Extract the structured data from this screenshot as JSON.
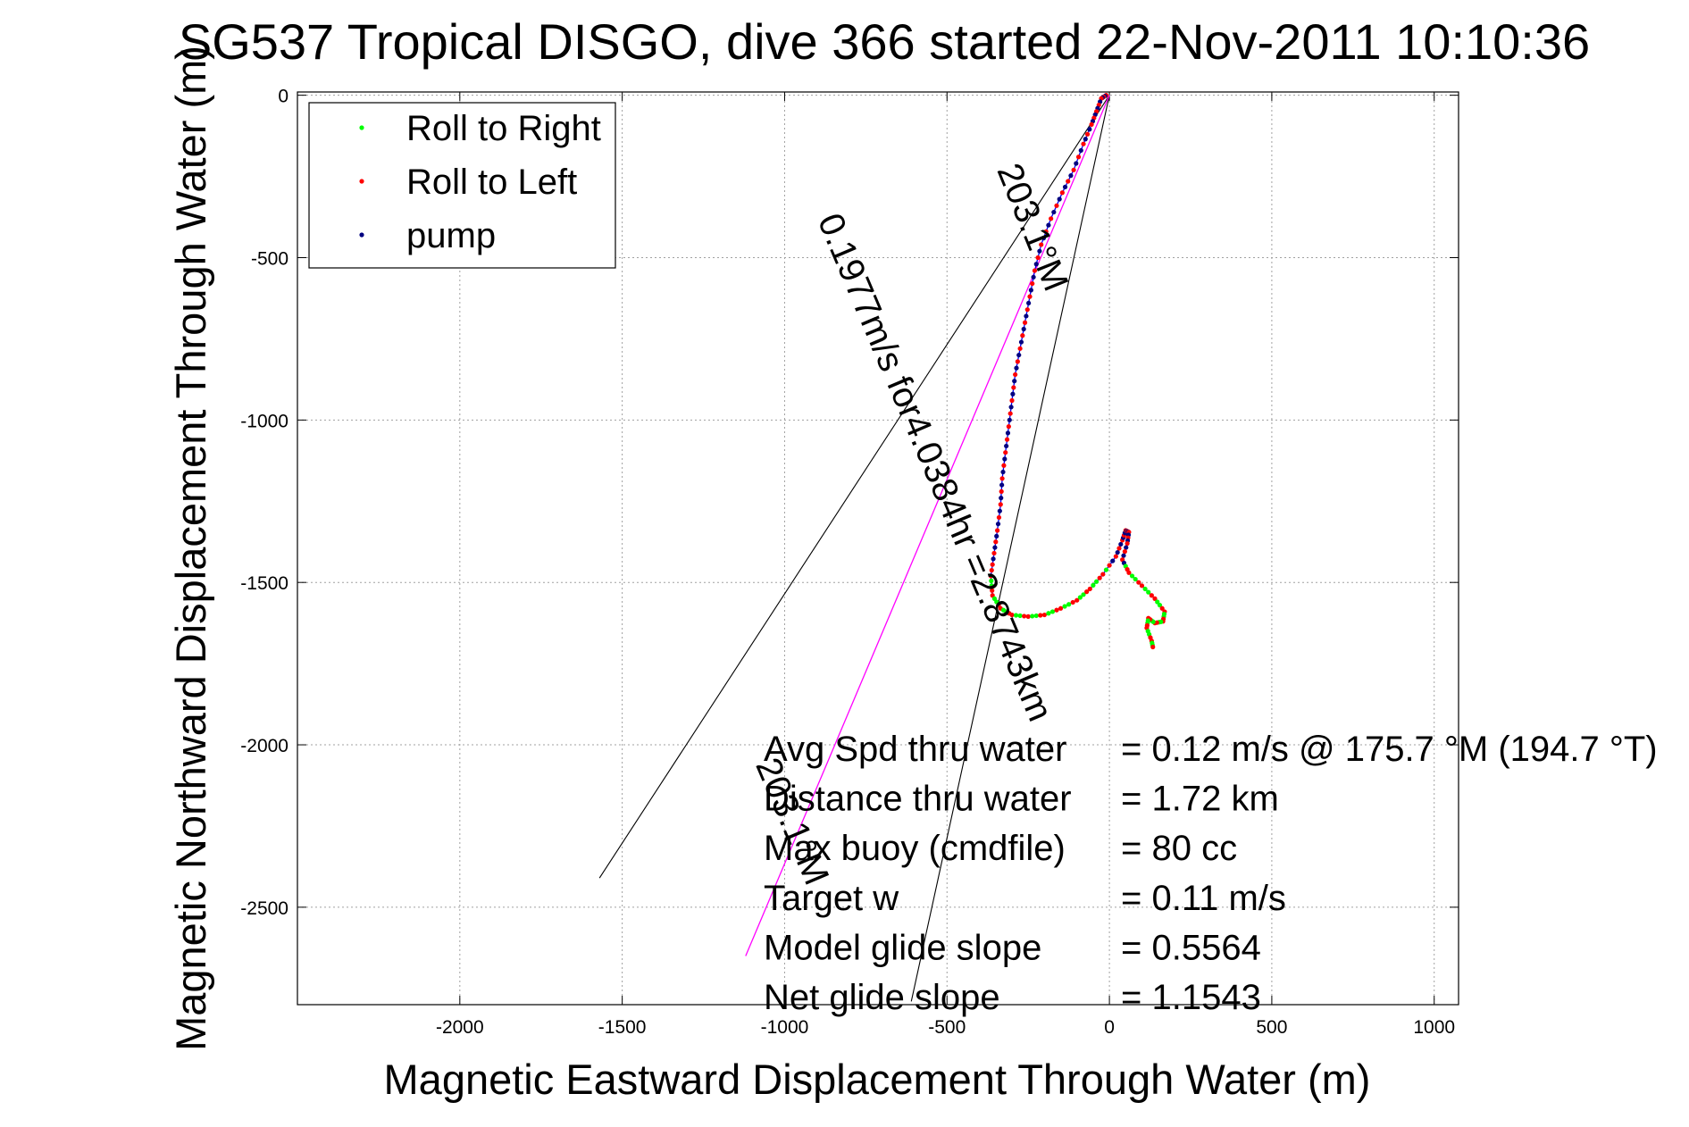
{
  "title": "SG537 Tropical DISGO, dive 366 started 22-Nov-2011 10:10:36",
  "chart_data": {
    "type": "scatter",
    "title": "SG537 Tropical DISGO, dive 366 started 22-Nov-2011 10:10:36",
    "xlabel": "Magnetic Eastward Displacement Through Water (m)",
    "ylabel": "Magnetic Northward Displacement Through Water (m)",
    "xlim": [
      -2500,
      1075
    ],
    "ylim": [
      -2800,
      10
    ],
    "grid": true,
    "legend_position": "top-left",
    "xticks": [
      -2000,
      -1500,
      -1000,
      -500,
      0,
      500,
      1000
    ],
    "yticks": [
      0,
      -500,
      -1000,
      -1500,
      -2000,
      -2500
    ],
    "legend": [
      {
        "label": "Roll to Right",
        "color": "#00ff00"
      },
      {
        "label": "Roll to Left",
        "color": "#ff0000"
      },
      {
        "label": "pump",
        "color": "#000080"
      }
    ],
    "track_color": "#0000ff",
    "track": [
      [
        -10,
        0
      ],
      [
        -25,
        -10
      ],
      [
        -40,
        -50
      ],
      [
        -55,
        -90
      ],
      [
        -80,
        -150
      ],
      [
        -110,
        -230
      ],
      [
        -145,
        -300
      ],
      [
        -180,
        -380
      ],
      [
        -210,
        -460
      ],
      [
        -230,
        -540
      ],
      [
        -245,
        -620
      ],
      [
        -260,
        -700
      ],
      [
        -275,
        -780
      ],
      [
        -290,
        -860
      ],
      [
        -300,
        -940
      ],
      [
        -310,
        -1020
      ],
      [
        -320,
        -1100
      ],
      [
        -330,
        -1180
      ],
      [
        -335,
        -1260
      ],
      [
        -345,
        -1340
      ],
      [
        -355,
        -1410
      ],
      [
        -365,
        -1480
      ],
      [
        -360,
        -1540
      ],
      [
        -335,
        -1580
      ],
      [
        -300,
        -1600
      ],
      [
        -250,
        -1605
      ],
      [
        -200,
        -1600
      ],
      [
        -150,
        -1580
      ],
      [
        -100,
        -1555
      ],
      [
        -60,
        -1520
      ],
      [
        -20,
        -1475
      ],
      [
        20,
        -1420
      ],
      [
        40,
        -1370
      ],
      [
        50,
        -1340
      ],
      [
        60,
        -1345
      ],
      [
        55,
        -1380
      ],
      [
        40,
        -1430
      ],
      [
        60,
        -1470
      ],
      [
        100,
        -1510
      ],
      [
        140,
        -1550
      ],
      [
        170,
        -1590
      ],
      [
        165,
        -1620
      ],
      [
        140,
        -1625
      ],
      [
        120,
        -1610
      ],
      [
        115,
        -1640
      ],
      [
        130,
        -1680
      ],
      [
        135,
        -1705
      ]
    ],
    "heading_lines": [
      {
        "from": [
          0,
          0
        ],
        "to": [
          -1570,
          -2410
        ]
      },
      {
        "from": [
          0,
          0
        ],
        "to": [
          -610,
          -2790
        ]
      }
    ],
    "course_line": {
      "from": [
        0,
        0
      ],
      "to": [
        -1120,
        -2650
      ],
      "color": "#ff00ff"
    },
    "annotations": [
      {
        "text": "203.1°M",
        "at": [
          -270,
          -420
        ],
        "angle_deg": 68
      },
      {
        "text": "0.1977m/s for4.0384hr =2.8743km",
        "at": [
          -570,
          -1160
        ],
        "angle_deg": 67
      },
      {
        "text": "203.1°M",
        "at": [
          -1010,
          -2250
        ],
        "angle_deg": 67
      }
    ],
    "stats": [
      {
        "label": "Avg Spd thru water",
        "value": "=  0.12 m/s @ 175.7 °M (194.7 °T)"
      },
      {
        "label": "Distance thru water",
        "value": "=  1.72 km"
      },
      {
        "label": "Max buoy (cmdfile)",
        "value": "= 80 cc"
      },
      {
        "label": "Target w",
        "value": "= 0.11 m/s"
      },
      {
        "label": "Model glide slope",
        "value": "= 0.5564"
      },
      {
        "label": "Net glide slope",
        "value": "= 1.1543"
      }
    ]
  }
}
